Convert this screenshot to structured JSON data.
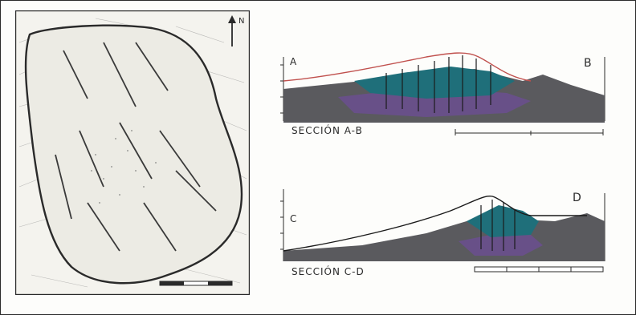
{
  "map": {
    "north_label": "N"
  },
  "section_ab": {
    "label": "SECCIÓN A-B",
    "end_left": "A",
    "end_right": "B"
  },
  "section_cd": {
    "label": "SECCIÓN C-D",
    "end_left": "C",
    "end_right": "D"
  },
  "colors": {
    "teal": "#1f6f7a",
    "purple": "#6b4f8f",
    "gray": "#5a5a5e",
    "outline_red": "#c0504d",
    "ink": "#2a2a2a"
  }
}
